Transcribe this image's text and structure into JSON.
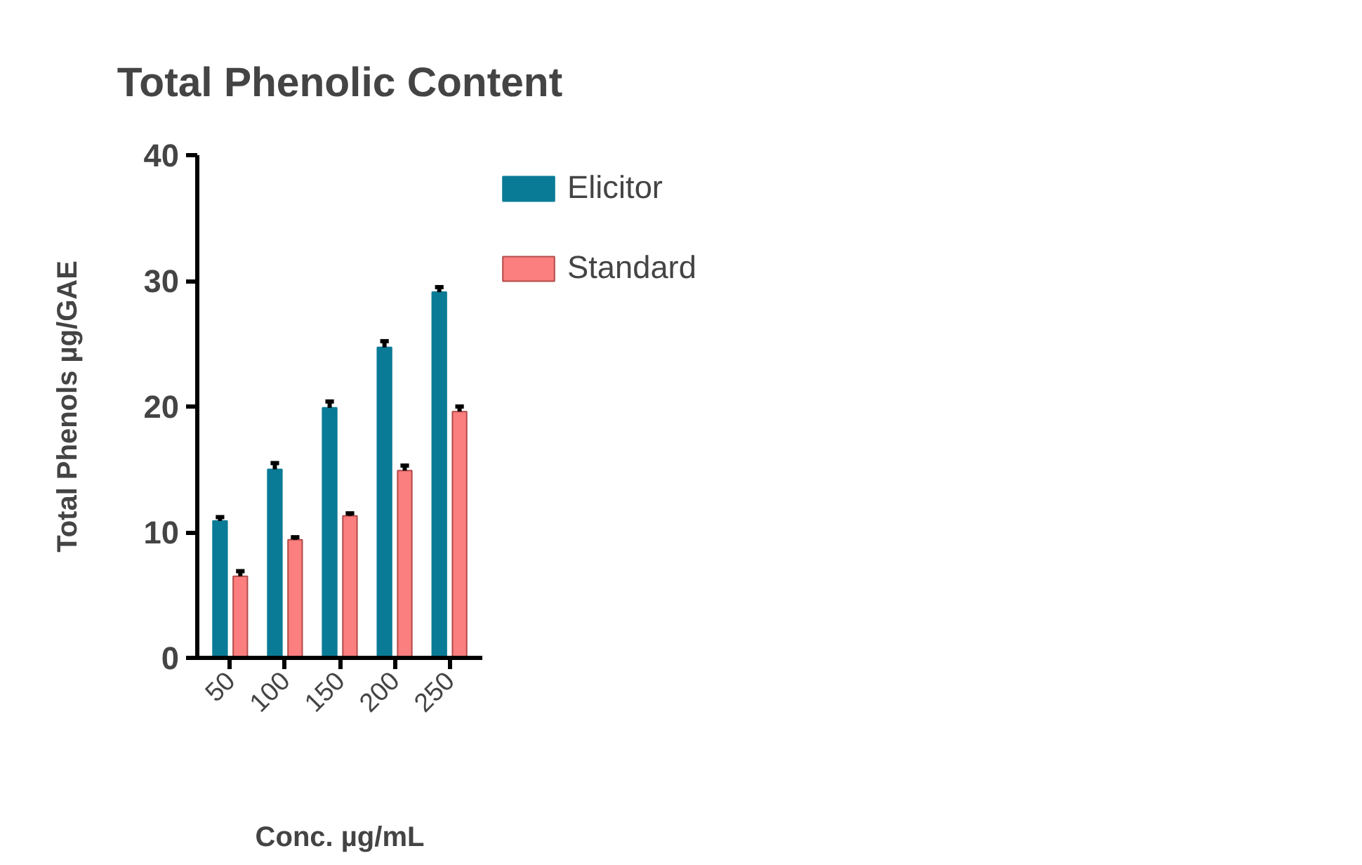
{
  "chart_data": {
    "type": "bar",
    "title": "Total Phenolic Content",
    "xlabel": "Conc. µg/mL",
    "ylabel": "Total Phenols µg/GAE",
    "categories": [
      "50",
      "100",
      "150",
      "200",
      "250"
    ],
    "series": [
      {
        "name": "Elicitor",
        "color": "#0a7b96",
        "values": [
          10.9,
          15.0,
          19.9,
          24.7,
          29.1
        ],
        "errors": [
          [
            10.9,
            11.2
          ],
          [
            15.0,
            15.5
          ],
          [
            19.9,
            20.4
          ],
          [
            24.7,
            25.2
          ],
          [
            29.1,
            29.5
          ]
        ]
      },
      {
        "name": "Standard",
        "color": "#fb7f7f",
        "values": [
          6.5,
          9.4,
          11.3,
          14.9,
          19.6
        ],
        "errors": [
          [
            6.5,
            6.9
          ],
          [
            9.4,
            9.6
          ],
          [
            11.3,
            11.5
          ],
          [
            14.9,
            15.3
          ],
          [
            19.6,
            20.0
          ]
        ]
      }
    ],
    "ylim": [
      0,
      40
    ],
    "yticks": [
      0,
      10,
      20,
      30,
      40
    ],
    "grid": false,
    "legend": "right"
  }
}
